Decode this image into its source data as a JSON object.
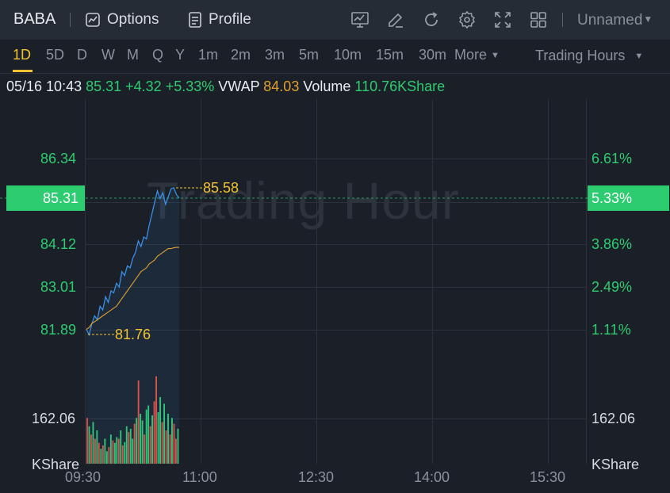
{
  "header": {
    "symbol": "BABA",
    "options_label": "Options",
    "profile_label": "Profile",
    "layout_name": "Unnamed",
    "icons": [
      "chart-icon",
      "draw-icon",
      "refresh-icon",
      "settings-icon",
      "fullscreen-icon",
      "grid-icon"
    ]
  },
  "timeframes": [
    "1D",
    "5D",
    "D",
    "W",
    "M",
    "Q",
    "Y",
    "1m",
    "2m",
    "3m",
    "5m",
    "10m",
    "15m",
    "30m"
  ],
  "active_timeframe": "1D",
  "more_label": "More",
  "session_label": "Trading Hours",
  "quote": {
    "datetime": "05/16 10:43",
    "price": "85.31",
    "change": "+4.32",
    "change_pct": "+5.33%",
    "vwap_label": "VWAP",
    "vwap": "84.03",
    "volume_label": "Volume",
    "volume": "110.76KShare"
  },
  "watermark": "Trading Hour",
  "colors": {
    "up": "#2ecc71",
    "down": "#e74c3c",
    "price_line": "#3a8ee6",
    "vwap_line": "#e0a030",
    "accent": "#f2c230"
  },
  "chart_data": {
    "type": "line",
    "price_axis_left": [
      "86.34",
      "85.31",
      "84.12",
      "83.01",
      "81.89"
    ],
    "price_axis_right": [
      "6.61%",
      "5.33%",
      "3.86%",
      "2.49%",
      "1.11%"
    ],
    "current_price_badge": "85.31",
    "current_pct_badge": "5.33%",
    "high_annotation": "85.58",
    "low_annotation": "81.76",
    "volume_axis": [
      "162.06",
      "KShare"
    ],
    "x_ticks": [
      "09:30",
      "11:00",
      "12:30",
      "14:00",
      "15:30"
    ],
    "ylim": [
      81.0,
      87.5
    ],
    "series": [
      {
        "values": [
          81.9,
          81.76,
          82.05,
          82.25,
          82.15,
          82.5,
          82.4,
          82.75,
          82.6,
          82.9,
          82.85,
          83.1,
          83.0,
          83.4,
          83.3,
          83.55,
          83.5,
          83.75,
          83.9,
          84.2,
          84.05,
          84.3,
          84.25,
          84.6,
          84.9,
          85.2,
          85.5,
          85.3,
          85.45,
          85.15,
          85.35,
          85.55,
          85.58,
          85.4,
          85.31
        ]
      },
      {
        "values": [
          81.9,
          81.95,
          82.05,
          82.1,
          82.15,
          82.2,
          82.25,
          82.3,
          82.35,
          82.4,
          82.45,
          82.5,
          82.6,
          82.7,
          82.8,
          82.9,
          83.0,
          83.1,
          83.2,
          83.3,
          83.4,
          83.45,
          83.5,
          83.6,
          83.65,
          83.7,
          83.8,
          83.85,
          83.9,
          83.95,
          84.0,
          84.0,
          84.02,
          84.03,
          84.03
        ]
      }
    ],
    "volume_bars": [
      {
        "v": 0.55,
        "up": false
      },
      {
        "v": 0.45,
        "up": true
      },
      {
        "v": 0.35,
        "up": false
      },
      {
        "v": 0.5,
        "up": true
      },
      {
        "v": 0.3,
        "up": false
      },
      {
        "v": 0.4,
        "up": true
      },
      {
        "v": 0.25,
        "up": false
      },
      {
        "v": 0.18,
        "up": true
      },
      {
        "v": 0.22,
        "up": false
      },
      {
        "v": 0.3,
        "up": true
      },
      {
        "v": 0.15,
        "up": true
      },
      {
        "v": 0.2,
        "up": false
      },
      {
        "v": 0.35,
        "up": true
      },
      {
        "v": 0.28,
        "up": false
      },
      {
        "v": 0.25,
        "up": true
      },
      {
        "v": 0.32,
        "up": true
      },
      {
        "v": 0.3,
        "up": false
      },
      {
        "v": 0.4,
        "up": true
      },
      {
        "v": 0.22,
        "up": false
      },
      {
        "v": 0.26,
        "up": true
      },
      {
        "v": 0.45,
        "up": true
      },
      {
        "v": 0.38,
        "up": false
      },
      {
        "v": 0.42,
        "up": true
      },
      {
        "v": 0.3,
        "up": true
      },
      {
        "v": 0.48,
        "up": false
      },
      {
        "v": 0.55,
        "up": true
      },
      {
        "v": 1.0,
        "up": false
      },
      {
        "v": 0.6,
        "up": true
      },
      {
        "v": 0.52,
        "up": true
      },
      {
        "v": 0.35,
        "up": false
      },
      {
        "v": 0.65,
        "up": true
      },
      {
        "v": 0.7,
        "up": true
      },
      {
        "v": 0.45,
        "up": false
      },
      {
        "v": 0.58,
        "up": true
      },
      {
        "v": 0.75,
        "up": false
      },
      {
        "v": 1.05,
        "up": false
      },
      {
        "v": 0.62,
        "up": true
      },
      {
        "v": 0.8,
        "up": true
      },
      {
        "v": 0.5,
        "up": false
      },
      {
        "v": 0.72,
        "up": true
      },
      {
        "v": 0.4,
        "up": false
      },
      {
        "v": 0.6,
        "up": true
      },
      {
        "v": 0.35,
        "up": false
      },
      {
        "v": 0.55,
        "up": true
      },
      {
        "v": 0.48,
        "up": false
      },
      {
        "v": 0.3,
        "up": false
      },
      {
        "v": 0.42,
        "up": true
      }
    ]
  }
}
